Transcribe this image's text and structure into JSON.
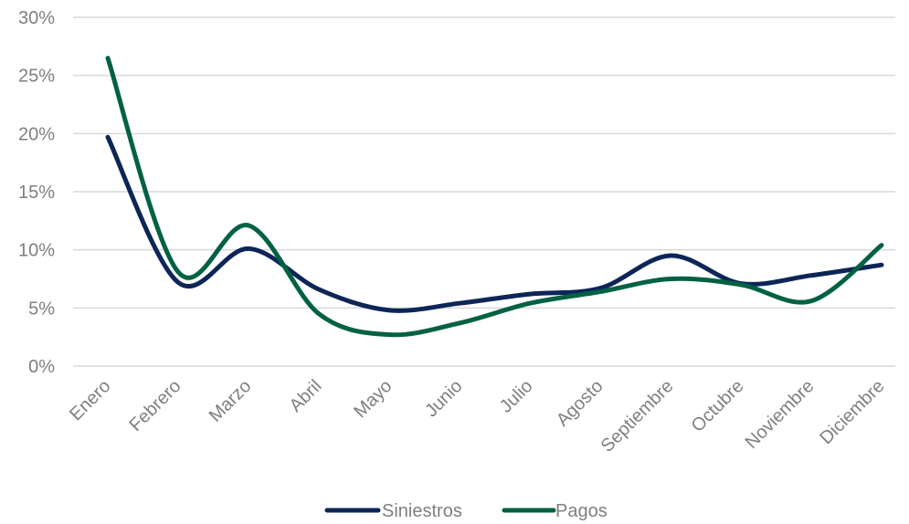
{
  "chart_data": {
    "type": "line",
    "categories": [
      "Enero",
      "Febrero",
      "Marzo",
      "Abril",
      "Mayo",
      "Junio",
      "Julio",
      "Agosto",
      "Septiembre",
      "Octubre",
      "Noviembre",
      "Diciembre"
    ],
    "series": [
      {
        "name": "Siniestros",
        "color": "#0d2557",
        "values": [
          19.7,
          7.2,
          10.1,
          6.6,
          4.8,
          5.4,
          6.2,
          6.7,
          9.5,
          7.1,
          7.8,
          8.7
        ]
      },
      {
        "name": "Pagos",
        "color": "#036143",
        "values": [
          26.5,
          8.1,
          12.1,
          4.5,
          2.7,
          3.7,
          5.4,
          6.4,
          7.5,
          7.0,
          5.6,
          10.4
        ]
      }
    ],
    "y_ticks": [
      "0%",
      "5%",
      "10%",
      "15%",
      "20%",
      "25%",
      "30%"
    ],
    "ylim": [
      0,
      30
    ],
    "y_step": 5,
    "grid": true,
    "legend_position": "bottom"
  }
}
